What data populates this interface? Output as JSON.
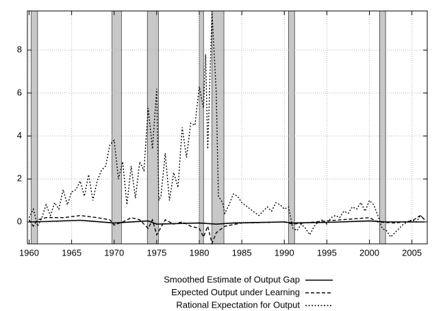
{
  "chart_data": {
    "type": "line",
    "xlim": [
      1959.8,
      2006.8
    ],
    "xticks": [
      1960,
      1965,
      1970,
      1975,
      1980,
      1985,
      1990,
      1995,
      2000,
      2005
    ],
    "ylim": [
      -1.02,
      9.82
    ],
    "yticks": [
      0,
      2,
      4,
      6,
      8
    ],
    "grid": true,
    "legend": "bottom-right",
    "shaded_periods": [
      [
        1960.25,
        1961.0
      ],
      [
        1969.75,
        1970.85
      ],
      [
        1973.9,
        1975.2
      ],
      [
        1980.0,
        1980.5
      ],
      [
        1981.5,
        1982.9
      ],
      [
        1990.5,
        1991.2
      ],
      [
        2001.2,
        2001.9
      ]
    ],
    "shade_color": "#c8c8c8",
    "series": [
      {
        "name": "Smoothed Estimate of Output Gap",
        "color": "#000000",
        "style": "solid",
        "x": [
          1960,
          1962,
          1966,
          1970,
          1974,
          1975,
          1980,
          1982,
          1984,
          1990,
          1991,
          1995,
          2000,
          2002,
          2006.5
        ],
        "values": [
          0,
          0.02,
          0.08,
          -0.05,
          0.05,
          -0.1,
          -0.05,
          -0.1,
          -0.05,
          0,
          -0.05,
          -0.02,
          0.05,
          0,
          0
        ]
      },
      {
        "name": "Expected Output under Learning",
        "color": "#000000",
        "style": "dashed",
        "x": [
          1960,
          1960.5,
          1961,
          1962,
          1964,
          1966,
          1968,
          1969.5,
          1970,
          1971,
          1972,
          1973,
          1974,
          1974.5,
          1975,
          1976,
          1977,
          1978,
          1979,
          1980,
          1980.5,
          1981,
          1981.5,
          1982,
          1983,
          1985,
          1990,
          1991,
          1995,
          2000,
          2001,
          2003,
          2005,
          2006,
          2006.5
        ],
        "values": [
          0.1,
          -0.2,
          0.1,
          0.2,
          0.2,
          0.3,
          0.2,
          0.1,
          -0.15,
          0.0,
          0.2,
          0.1,
          -0.3,
          0.1,
          -0.6,
          0.1,
          -0.1,
          0.0,
          -0.2,
          -0.3,
          -0.7,
          -0.2,
          -1.0,
          -0.5,
          -0.2,
          -0.05,
          0.0,
          -0.1,
          0.05,
          0.2,
          0.0,
          -0.05,
          0.05,
          0.3,
          0.1
        ]
      },
      {
        "name": "Rational Expectation for Output",
        "color": "#000000",
        "style": "dotted",
        "x": [
          1960,
          1960.5,
          1961,
          1961.5,
          1962,
          1962.5,
          1963,
          1963.5,
          1964,
          1964.5,
          1965,
          1965.5,
          1966,
          1966.5,
          1967,
          1967.5,
          1968,
          1968.5,
          1969,
          1969.5,
          1970,
          1970.5,
          1971,
          1971.5,
          1972,
          1972.5,
          1973,
          1973.5,
          1974,
          1974.5,
          1975,
          1975.25,
          1975.5,
          1976,
          1976.5,
          1977,
          1977.5,
          1978,
          1978.5,
          1979,
          1979.5,
          1980,
          1980.5,
          1980.75,
          1981,
          1981.5,
          1982,
          1982.25,
          1982.75,
          1983,
          1983.5,
          1984,
          1984.5,
          1985,
          1986,
          1987,
          1987.5,
          1988,
          1988.5,
          1989,
          1989.5,
          1990,
          1990.5,
          1991,
          1991.5,
          1992,
          1992.5,
          1993,
          1993.5,
          1994,
          1994.5,
          1995,
          1995.5,
          1996,
          1996.5,
          1997,
          1997.5,
          1998,
          1998.5,
          1999,
          1999.5,
          2000,
          2000.5,
          2001,
          2001.5,
          2002,
          2002.5,
          2003,
          2003.5,
          2004,
          2004.5,
          2005,
          2005.5,
          2006,
          2006.5
        ],
        "values": [
          0.2,
          0.6,
          -0.2,
          0.2,
          0.8,
          0.3,
          0.9,
          0.6,
          1.5,
          0.8,
          1.4,
          1.5,
          1.9,
          1.2,
          2.2,
          1.0,
          1.9,
          2.4,
          2.6,
          3.6,
          3.8,
          2.0,
          2.8,
          0.8,
          2.6,
          1.1,
          2.8,
          2.4,
          5.3,
          3.4,
          6.2,
          1.0,
          1.2,
          3.2,
          1.0,
          2.3,
          1.6,
          4.4,
          3.0,
          4.6,
          4.5,
          6.3,
          5.3,
          7.8,
          3.4,
          9.8,
          6.0,
          1.2,
          0.9,
          0.4,
          0.8,
          1.3,
          1.2,
          0.9,
          0.6,
          0.3,
          0.5,
          0.7,
          0.5,
          0.9,
          0.8,
          0.6,
          0.7,
          -0.3,
          -0.4,
          -0.1,
          -0.3,
          -0.6,
          -0.2,
          0.0,
          0.1,
          -0.1,
          0.2,
          0.3,
          0.2,
          0.5,
          0.4,
          0.7,
          0.6,
          0.9,
          0.5,
          1.0,
          0.8,
          0.3,
          -0.3,
          -0.4,
          -0.7,
          -0.5,
          -0.3,
          -0.1,
          0.0,
          0.1,
          0.0,
          0.3,
          0.1
        ]
      }
    ]
  }
}
